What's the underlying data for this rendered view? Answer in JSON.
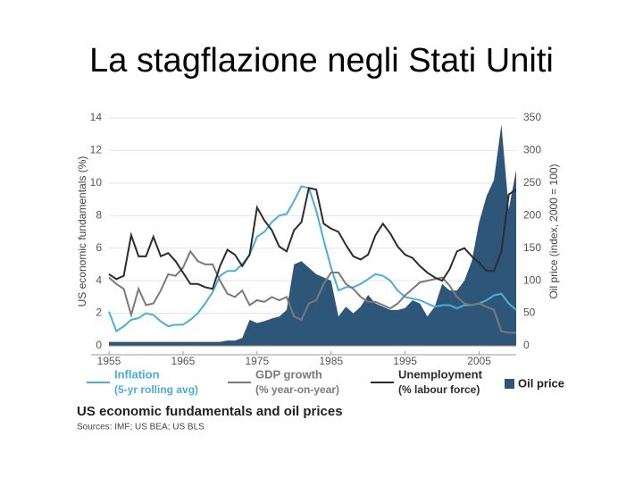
{
  "slide": {
    "title": "La stagflazione negli Stati Uniti"
  },
  "chart_data": {
    "type": "line",
    "title": "US economic fundamentals and oil prices",
    "source": "Sources: IMF; US BEA; US BLS",
    "ylabel": "US economic fundamentals (%)",
    "y2label": "Oil price (index, 2000 = 100)",
    "x": [
      1955,
      1956,
      1957,
      1958,
      1959,
      1960,
      1961,
      1962,
      1963,
      1964,
      1965,
      1966,
      1967,
      1968,
      1969,
      1970,
      1971,
      1972,
      1973,
      1974,
      1975,
      1976,
      1977,
      1978,
      1979,
      1980,
      1981,
      1982,
      1983,
      1984,
      1985,
      1986,
      1987,
      1988,
      1989,
      1990,
      1991,
      1992,
      1993,
      1994,
      1995,
      1996,
      1997,
      1998,
      1999,
      2000,
      2001,
      2002,
      2003,
      2004,
      2005,
      2006,
      2007,
      2008,
      2009,
      2010
    ],
    "xlim": [
      1955,
      2010
    ],
    "xticks": [
      1955,
      1965,
      1975,
      1985,
      1995,
      2005
    ],
    "ylim": [
      0,
      14
    ],
    "yticks": [
      0,
      2,
      4,
      6,
      8,
      10,
      12,
      14
    ],
    "y2lim": [
      0,
      350
    ],
    "y2ticks": [
      0,
      50,
      100,
      150,
      200,
      250,
      300,
      350
    ],
    "series": [
      {
        "name": "Oil price",
        "type": "area",
        "axis": "y2",
        "color": "#2e5679",
        "values": [
          6,
          6,
          6,
          6,
          6,
          6,
          6,
          6,
          6,
          6,
          6,
          6,
          6,
          6,
          6,
          6,
          8,
          8,
          12,
          40,
          35,
          38,
          42,
          45,
          55,
          125,
          130,
          120,
          110,
          105,
          100,
          45,
          60,
          50,
          60,
          78,
          65,
          60,
          55,
          55,
          58,
          70,
          65,
          45,
          60,
          95,
          85,
          85,
          100,
          130,
          190,
          230,
          255,
          340,
          210,
          270
        ]
      },
      {
        "name": "Inflation",
        "detail": "(5-yr rolling avg)",
        "type": "line",
        "color": "#4aaed9",
        "values": [
          2.1,
          0.9,
          1.2,
          1.6,
          1.7,
          2.0,
          1.9,
          1.5,
          1.2,
          1.3,
          1.3,
          1.6,
          2.0,
          2.6,
          3.3,
          4.3,
          4.6,
          4.6,
          5.0,
          5.6,
          6.7,
          7.0,
          7.6,
          8.0,
          8.1,
          8.9,
          9.8,
          9.7,
          8.3,
          6.5,
          4.8,
          3.4,
          3.6,
          3.6,
          3.8,
          4.1,
          4.4,
          4.3,
          4.0,
          3.4,
          3.0,
          2.9,
          2.8,
          2.6,
          2.4,
          2.5,
          2.5,
          2.3,
          2.5,
          2.5,
          2.6,
          2.8,
          3.1,
          3.2,
          2.6,
          2.2
        ]
      },
      {
        "name": "GDP growth",
        "detail": "(% year-on-year)",
        "type": "line",
        "color": "#7a7a7a",
        "values": [
          4.2,
          3.8,
          3.5,
          1.9,
          3.5,
          2.5,
          2.6,
          3.4,
          4.4,
          4.3,
          4.8,
          5.8,
          5.2,
          5.0,
          5.0,
          4.0,
          3.2,
          3.0,
          3.4,
          2.5,
          2.8,
          2.7,
          3.0,
          2.8,
          3.0,
          1.8,
          1.6,
          2.6,
          2.8,
          3.8,
          4.5,
          4.5,
          3.8,
          3.5,
          3.0,
          2.7,
          2.7,
          2.5,
          2.3,
          2.6,
          3.1,
          3.5,
          3.9,
          4.0,
          4.1,
          4.2,
          3.7,
          3.0,
          2.6,
          2.5,
          2.6,
          2.4,
          2.2,
          0.9,
          0.8,
          0.8
        ]
      },
      {
        "name": "Unemployment",
        "detail": "(% labour force)",
        "type": "line",
        "color": "#2d2d2d",
        "values": [
          4.4,
          4.1,
          4.3,
          6.8,
          5.5,
          5.5,
          6.7,
          5.5,
          5.7,
          5.2,
          4.5,
          3.8,
          3.8,
          3.6,
          3.5,
          4.9,
          5.9,
          5.6,
          4.9,
          5.6,
          8.5,
          7.7,
          7.1,
          6.1,
          5.8,
          7.1,
          7.6,
          9.7,
          9.6,
          7.5,
          7.2,
          7.0,
          6.2,
          5.5,
          5.3,
          5.6,
          6.8,
          7.5,
          6.9,
          6.1,
          5.6,
          5.4,
          4.9,
          4.5,
          4.2,
          4.0,
          4.7,
          5.8,
          6.0,
          5.5,
          5.1,
          4.6,
          4.6,
          5.8,
          9.3,
          9.6
        ]
      }
    ]
  }
}
